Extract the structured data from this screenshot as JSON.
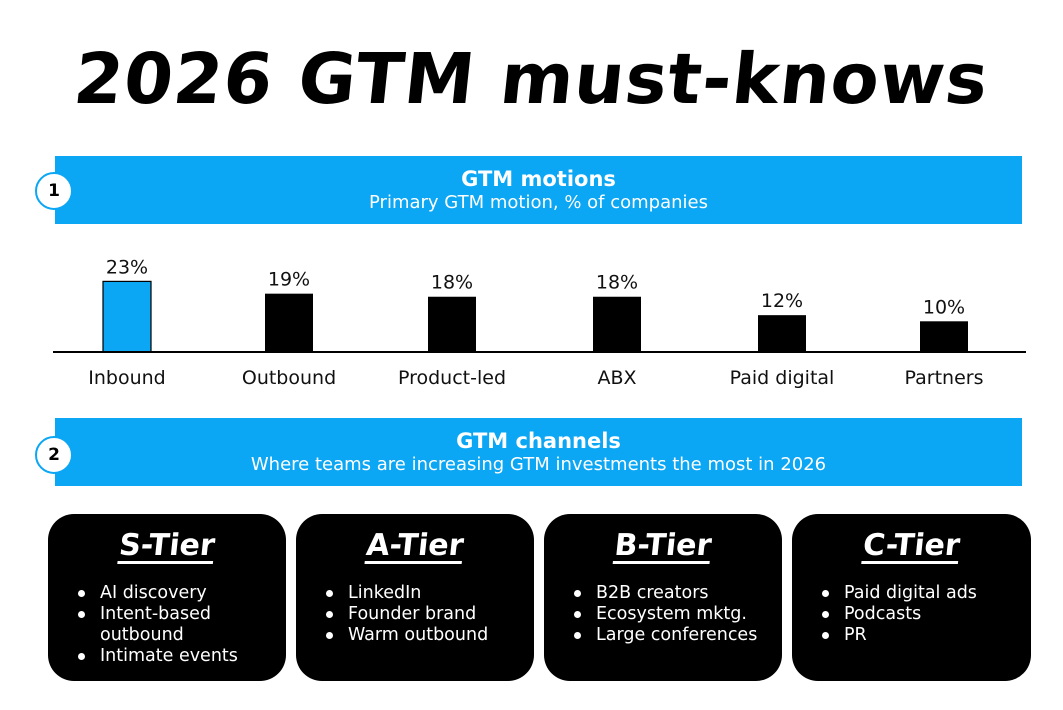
{
  "title": "2026 GTM must-knows",
  "section1": {
    "number": "1",
    "title": "GTM motions",
    "subtitle": "Primary GTM motion, % of companies"
  },
  "section2": {
    "number": "2",
    "title": "GTM channels",
    "subtitle": "Where teams are increasing GTM investments the most in 2026"
  },
  "colors": {
    "accent": "#0ba6f4",
    "bar": "#000000",
    "card": "#000000"
  },
  "chart_data": {
    "type": "bar",
    "title": "GTM motions",
    "subtitle": "Primary GTM motion, % of companies",
    "categories": [
      "Inbound",
      "Outbound",
      "Product-led",
      "ABX",
      "Paid digital",
      "Partners"
    ],
    "values": [
      23,
      19,
      18,
      18,
      12,
      10
    ],
    "value_labels": [
      "23%",
      "19%",
      "18%",
      "18%",
      "12%",
      "10%"
    ],
    "highlight_index": 0,
    "unit": "%",
    "grid": false
  },
  "tiers": [
    {
      "name": "S-Tier",
      "items": [
        "AI discovery",
        "Intent-based outbound",
        "Intimate events"
      ]
    },
    {
      "name": "A-Tier",
      "items": [
        "LinkedIn",
        "Founder brand",
        "Warm outbound"
      ]
    },
    {
      "name": "B-Tier",
      "items": [
        "B2B creators",
        "Ecosystem mktg.",
        "Large conferences"
      ]
    },
    {
      "name": "C-Tier",
      "items": [
        "Paid digital ads",
        "Podcasts",
        "PR"
      ]
    }
  ]
}
